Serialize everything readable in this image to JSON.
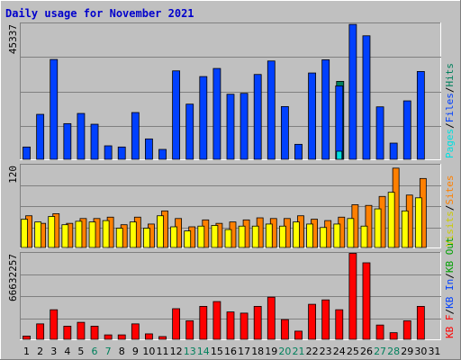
{
  "chart_data": {
    "type": "bar",
    "title": "Daily usage for November 2021",
    "days": [
      "1",
      "2",
      "3",
      "4",
      "5",
      "6",
      "7",
      "8",
      "9",
      "10",
      "11",
      "12",
      "13",
      "14",
      "15",
      "16",
      "17",
      "18",
      "19",
      "20",
      "21",
      "22",
      "23",
      "24",
      "25",
      "26",
      "27",
      "28",
      "29",
      "30",
      "31"
    ],
    "weekend_days": [
      "6",
      "7",
      "13",
      "14",
      "20",
      "21",
      "27",
      "28"
    ],
    "panels": [
      {
        "name": "hits-pages-files",
        "ymax_label": "45337",
        "ymax": 45337,
        "series": [
          {
            "name": "Hits",
            "color": "#00805c",
            "values": [
              0,
              0,
              0,
              0,
              0,
              0,
              0,
              0,
              0,
              0,
              0,
              0,
              0,
              0,
              0,
              0,
              0,
              0,
              0,
              0,
              0,
              0,
              0,
              26000,
              0,
              0,
              0,
              0,
              0,
              0,
              0
            ]
          },
          {
            "name": "Files",
            "color": "#0040ff",
            "values": [
              4100,
              15000,
              33300,
              11900,
              15300,
              11700,
              4500,
              4100,
              15600,
              6800,
              3300,
              29500,
              18400,
              27600,
              30300,
              21700,
              22000,
              28300,
              32800,
              17600,
              5000,
              28800,
              33200,
              24500,
              45000,
              41200,
              17500,
              5400,
              19500,
              29300,
              0
            ]
          },
          {
            "name": "Pages",
            "color": "#00e0e0",
            "values": [
              0,
              0,
              0,
              0,
              0,
              0,
              0,
              0,
              0,
              0,
              0,
              0,
              0,
              0,
              0,
              0,
              0,
              0,
              0,
              0,
              0,
              0,
              0,
              2700,
              0,
              0,
              0,
              0,
              0,
              0,
              0
            ]
          }
        ]
      },
      {
        "name": "visits-sites",
        "ymax_label": "120",
        "ymax": 120,
        "series": [
          {
            "name": "Visits",
            "color": "#ffff00",
            "values": [
              41,
              37,
              45,
              33,
              38,
              37,
              39,
              28,
              37,
              28,
              46,
              30,
              24,
              31,
              32,
              26,
              31,
              31,
              34,
              31,
              37,
              34,
              29,
              34,
              42,
              31,
              56,
              80,
              53,
              72,
              0
            ]
          },
          {
            "name": "Sites",
            "color": "#ff8000",
            "values": [
              46,
              35,
              49,
              35,
              42,
              42,
              44,
              33,
              44,
              34,
              53,
              42,
              30,
              40,
              35,
              37,
              40,
              43,
              42,
              42,
              46,
              41,
              39,
              44,
              62,
              61,
              74,
              115,
              76,
              100,
              0
            ]
          }
        ]
      },
      {
        "name": "kbytes",
        "ymax_label": "66632257",
        "ymax": 66632257,
        "series": [
          {
            "name": "KBytes",
            "color": "#ff0000",
            "values": [
              2500000,
              11900000,
              22800000,
              10100000,
              13100000,
              10100000,
              3400000,
              3400000,
              11900000,
              4200000,
              2100000,
              23600000,
              14300000,
              25400000,
              29100000,
              21100000,
              20200000,
              25400000,
              32500000,
              15200000,
              6300000,
              27000000,
              30400000,
              22800000,
              66300000,
              59000000,
              11000000,
              5100000,
              14300000,
              25400000,
              0
            ]
          }
        ]
      }
    ],
    "legends": {
      "panel1": [
        {
          "text": "Pages",
          "color": "#00e0e0"
        },
        {
          "text": "/",
          "color": "#000000"
        },
        {
          "text": "Files",
          "color": "#0040ff"
        },
        {
          "text": "/",
          "color": "#000000"
        },
        {
          "text": "Hits",
          "color": "#00805c"
        }
      ],
      "panel2": [
        {
          "text": "Visits",
          "color": "#cccc00"
        },
        {
          "text": "/",
          "color": "#000000"
        },
        {
          "text": "Sites",
          "color": "#ff8000"
        }
      ],
      "panel3": [
        {
          "text": "KB F",
          "color": "#ff0000"
        },
        {
          "text": "/",
          "color": "#000000"
        },
        {
          "text": "KB In",
          "color": "#0040ff"
        },
        {
          "text": "/",
          "color": "#000000"
        },
        {
          "text": "KB Out",
          "color": "#00a000"
        }
      ]
    }
  },
  "colors": {
    "background": "#c0c0c0",
    "title": "#0000cc",
    "weekday_label": "#000000",
    "weekend_label": "#00805c"
  }
}
